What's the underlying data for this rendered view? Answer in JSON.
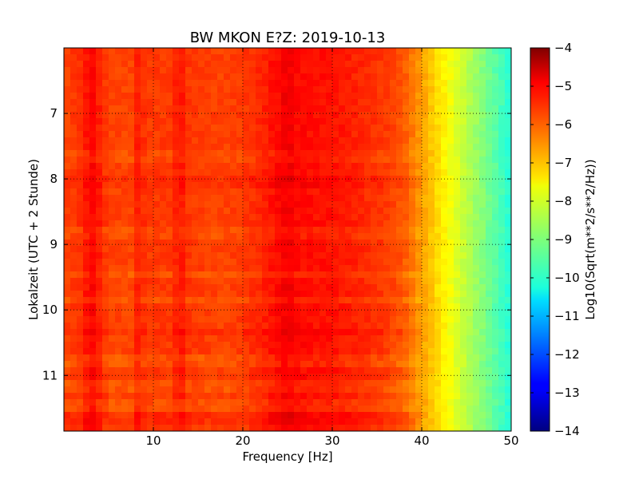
{
  "chart_data": {
    "type": "heatmap",
    "title": "BW MKON E?Z: 2019-10-13",
    "xlabel": "Frequency [Hz]",
    "ylabel": "Lokalzeit (UTC + 2 Stunde)",
    "xlim": [
      0,
      50
    ],
    "ylim": [
      11.85,
      6.0
    ],
    "y_axis_inverted": true,
    "xticks": [
      10,
      20,
      30,
      40,
      50
    ],
    "yticks": [
      7,
      8,
      9,
      10,
      11
    ],
    "grid": true,
    "colormap": "jet",
    "colorbar": {
      "label": "Log10(Sqrt(m**2/s**2/Hz))",
      "range": [
        -14,
        -4
      ],
      "ticks": [
        -4,
        -5,
        -6,
        -7,
        -8,
        -9,
        -10,
        -11,
        -12,
        -13,
        -14
      ]
    },
    "frequency_profile_hz": [
      0,
      1,
      2,
      3,
      5,
      8,
      8.5,
      9,
      12,
      13,
      14,
      18,
      20,
      22,
      24,
      25,
      26,
      28,
      30,
      33,
      36,
      38,
      40,
      42,
      44,
      46,
      48,
      50
    ],
    "frequency_profile_log10": [
      -5.9,
      -5.8,
      -5.7,
      -5.2,
      -5.9,
      -5.9,
      -5.1,
      -5.8,
      -5.8,
      -5.4,
      -5.8,
      -5.9,
      -5.8,
      -5.6,
      -5.3,
      -5.1,
      -5.3,
      -5.4,
      -5.4,
      -5.6,
      -5.8,
      -6.1,
      -6.8,
      -7.5,
      -8.1,
      -8.7,
      -9.3,
      -9.9
    ],
    "time_bands_hour": [
      7.65,
      8.05,
      8.8,
      9.45,
      9.85,
      10.35,
      10.8,
      11.15,
      11.45,
      11.65
    ],
    "time_bands_delta_log10": [
      -0.2,
      0.15,
      -0.2,
      -0.3,
      -0.25,
      0.2,
      -0.3,
      -0.25,
      -0.25,
      0.2
    ]
  }
}
